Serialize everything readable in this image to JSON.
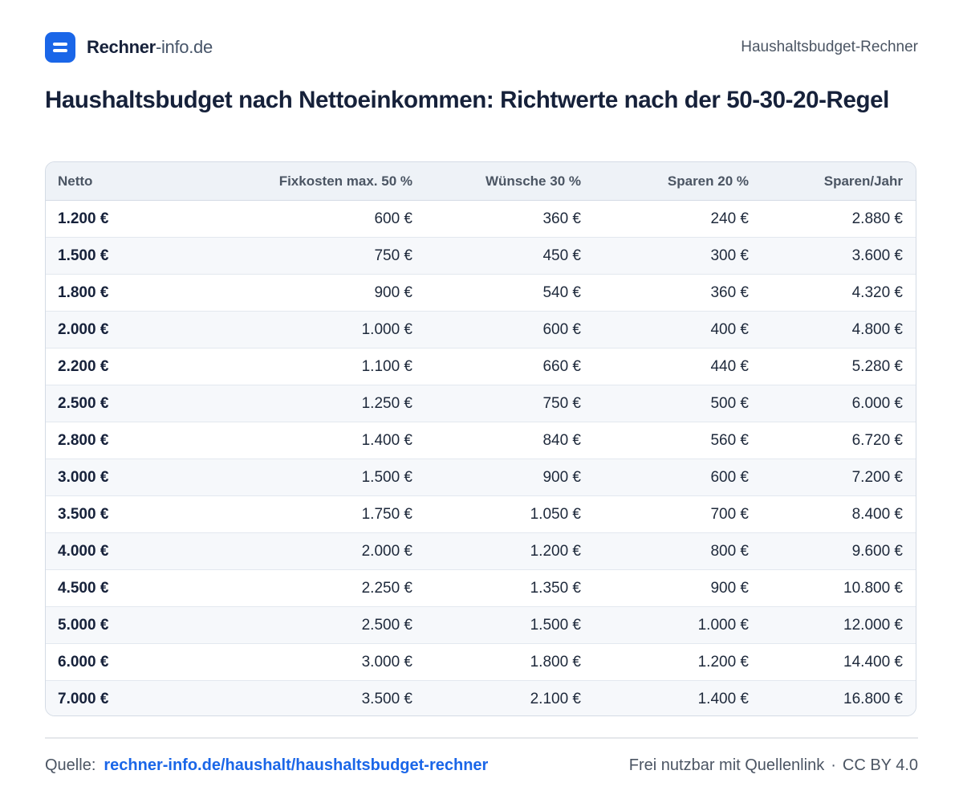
{
  "header": {
    "brand_strong": "Rechner",
    "brand_light": "-info.de",
    "right_label": "Haushaltsbudget-Rechner"
  },
  "title": "Haushaltsbudget nach Nettoeinkommen: Richtwerte nach der 50-30-20-Regel",
  "table": {
    "columns": [
      "Netto",
      "Fixkosten max. 50 %",
      "Wünsche 30 %",
      "Sparen 20 %",
      "Sparen/Jahr"
    ],
    "rows": [
      [
        "1.200 €",
        "600 €",
        "360 €",
        "240 €",
        "2.880 €"
      ],
      [
        "1.500 €",
        "750 €",
        "450 €",
        "300 €",
        "3.600 €"
      ],
      [
        "1.800 €",
        "900 €",
        "540 €",
        "360 €",
        "4.320 €"
      ],
      [
        "2.000 €",
        "1.000 €",
        "600 €",
        "400 €",
        "4.800 €"
      ],
      [
        "2.200 €",
        "1.100 €",
        "660 €",
        "440 €",
        "5.280 €"
      ],
      [
        "2.500 €",
        "1.250 €",
        "750 €",
        "500 €",
        "6.000 €"
      ],
      [
        "2.800 €",
        "1.400 €",
        "840 €",
        "560 €",
        "6.720 €"
      ],
      [
        "3.000 €",
        "1.500 €",
        "900 €",
        "600 €",
        "7.200 €"
      ],
      [
        "3.500 €",
        "1.750 €",
        "1.050 €",
        "700 €",
        "8.400 €"
      ],
      [
        "4.000 €",
        "2.000 €",
        "1.200 €",
        "800 €",
        "9.600 €"
      ],
      [
        "4.500 €",
        "2.250 €",
        "1.350 €",
        "900 €",
        "10.800 €"
      ],
      [
        "5.000 €",
        "2.500 €",
        "1.500 €",
        "1.000 €",
        "12.000 €"
      ],
      [
        "6.000 €",
        "3.000 €",
        "1.800 €",
        "1.200 €",
        "14.400 €"
      ],
      [
        "7.000 €",
        "3.500 €",
        "2.100 €",
        "1.400 €",
        "16.800 €"
      ]
    ]
  },
  "footer": {
    "source_label": "Quelle:",
    "source_link": "rechner-info.de/haushalt/haushaltsbudget-rechner",
    "license_text": "Frei nutzbar mit Quellenlink",
    "separator": "·",
    "license_name": "CC BY 4.0"
  },
  "colors": {
    "accent": "#1a66e8",
    "text_dark": "#16213a",
    "header_bg": "#eef2f7",
    "stripe_bg": "#f6f8fb"
  }
}
